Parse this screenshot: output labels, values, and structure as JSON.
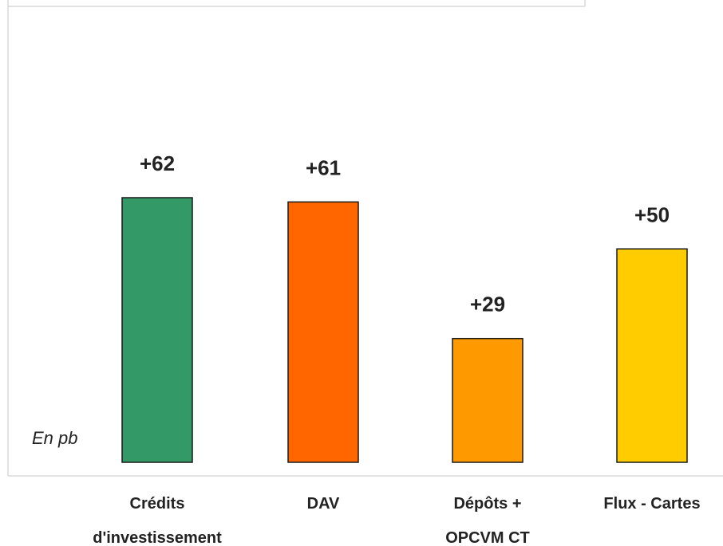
{
  "chart_data": {
    "type": "bar",
    "categories": [
      [
        "Crédits",
        "d'investissement"
      ],
      [
        "DAV"
      ],
      [
        "Dépôts +",
        "OPCVM CT"
      ],
      [
        "Flux - Cartes"
      ]
    ],
    "values": [
      62,
      61,
      29,
      50
    ],
    "value_labels": [
      "+62",
      "+61",
      "+29",
      "+50"
    ],
    "colors": [
      "#339966",
      "#FF6600",
      "#FF9900",
      "#FFCC00"
    ],
    "unit_note": "En pb",
    "ylim": [
      0,
      100
    ],
    "grid": false,
    "legend": "none"
  }
}
